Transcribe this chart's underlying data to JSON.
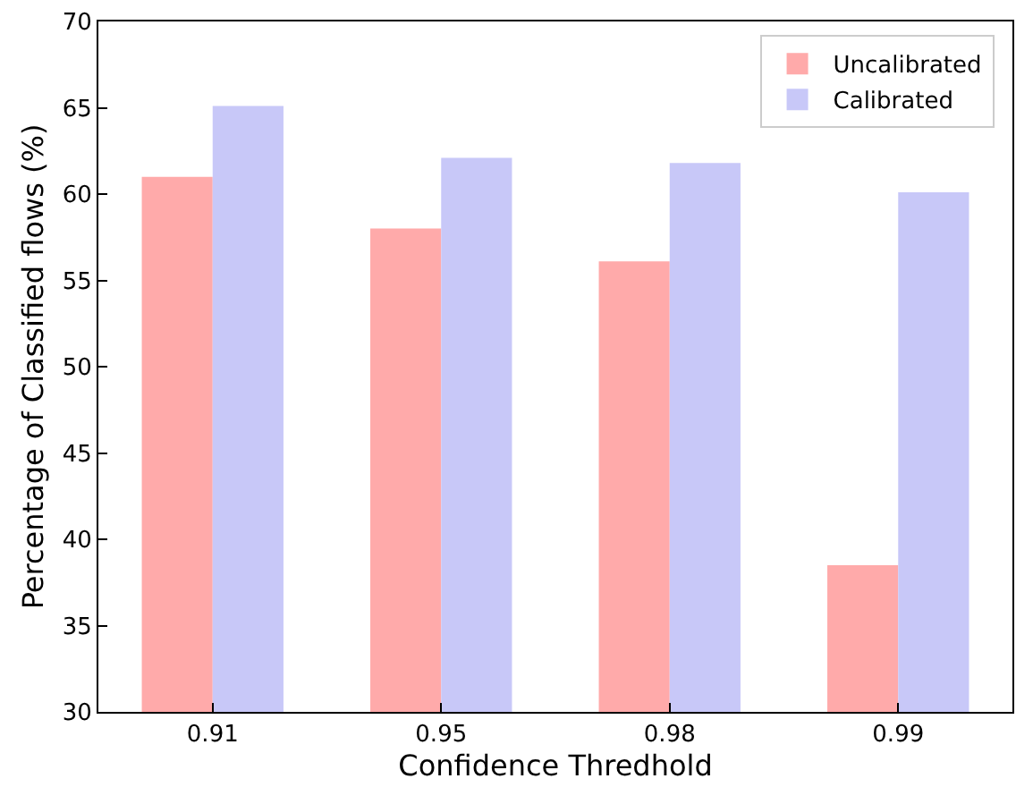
{
  "chart_data": {
    "type": "bar",
    "xlabel": "Confidence Thredhold",
    "ylabel": "Percentage of Classified flows (%)",
    "categories": [
      "0.91",
      "0.95",
      "0.98",
      "0.99"
    ],
    "series": [
      {
        "name": "Uncalibrated",
        "color": "#ffaaaa",
        "values": [
          61,
          58,
          56.1,
          38.5
        ]
      },
      {
        "name": "Calibrated",
        "color": "#c8c8f8",
        "values": [
          65.1,
          62.1,
          61.8,
          60.1
        ]
      }
    ],
    "ylim": [
      30,
      70
    ],
    "yticks": [
      30,
      35,
      40,
      45,
      50,
      55,
      60,
      65,
      70
    ],
    "grid": false,
    "legend": "top right"
  }
}
